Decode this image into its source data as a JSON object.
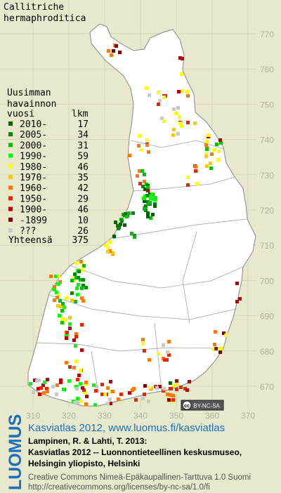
{
  "title": [
    "Callitriche",
    "hermaphroditica"
  ],
  "legend": {
    "header": [
      "Uusimman",
      "havainnon"
    ],
    "columns": [
      "vuosi",
      "lkm"
    ],
    "rows": [
      {
        "label": "2010-",
        "count": 17,
        "color": "#006400"
      },
      {
        "label": "2005-",
        "count": 34,
        "color": "#008c00"
      },
      {
        "label": "2000-",
        "count": 31,
        "color": "#00c000"
      },
      {
        "label": "1990-",
        "count": 59,
        "color": "#00ff00"
      },
      {
        "label": "1980-",
        "count": 46,
        "color": "#ffff00"
      },
      {
        "label": "1970-",
        "count": 35,
        "color": "#ffc800"
      },
      {
        "label": "1960-",
        "count": 42,
        "color": "#ff7800"
      },
      {
        "label": "1950-",
        "count": 29,
        "color": "#e62800"
      },
      {
        "label": "1900-",
        "count": 46,
        "color": "#c00000"
      },
      {
        "label": "-1899",
        "count": 10,
        "color": "#800000"
      },
      {
        "label": "???",
        "count": 26,
        "color": "#c8c8c8"
      }
    ],
    "total": {
      "label": "Yhteensä",
      "count": 375
    }
  },
  "grid": {
    "y_labels": [
      770,
      760,
      750,
      740,
      730,
      720,
      710,
      700,
      690,
      680,
      670
    ],
    "x_labels": [
      310,
      320,
      330,
      340,
      350,
      360,
      370
    ]
  },
  "badge": {
    "icon": "cc",
    "text": "BY-NC-SA"
  },
  "brand": "LUOMUS",
  "citation": {
    "link": "Kasviatlas 2012, www.luomus.fi/kasviatlas",
    "lines": [
      "Lampinen, R. & Lahti, T. 2013:",
      "Kasviatlas 2012 -- Luonnontieteellinen keskusmuseo,",
      "Helsingin yliopisto, Helsinki"
    ]
  },
  "license": [
    "Creative Commons Nimeä-Epäkaupallinen-Tarttuva 1.0 Suomi",
    "http://creativecommons.org/licenses/by-nc-sa/1.0/fi"
  ]
}
